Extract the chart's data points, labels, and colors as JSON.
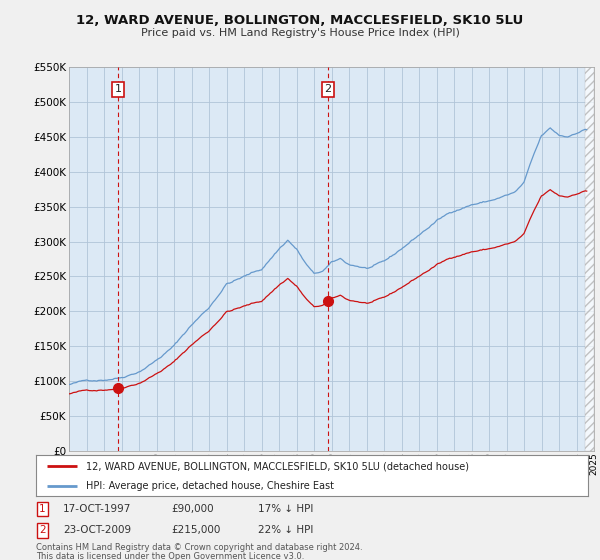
{
  "title": "12, WARD AVENUE, BOLLINGTON, MACCLESFIELD, SK10 5LU",
  "subtitle": "Price paid vs. HM Land Registry's House Price Index (HPI)",
  "ylim": [
    0,
    550000
  ],
  "yticks": [
    0,
    50000,
    100000,
    150000,
    200000,
    250000,
    300000,
    350000,
    400000,
    450000,
    500000,
    550000
  ],
  "ytick_labels": [
    "£0",
    "£50K",
    "£100K",
    "£150K",
    "£200K",
    "£250K",
    "£300K",
    "£350K",
    "£400K",
    "£450K",
    "£500K",
    "£550K"
  ],
  "bg_color": "#f0f0f0",
  "plot_bg_color": "#dce9f5",
  "grid_color": "#b0c4d8",
  "red_color": "#cc1111",
  "blue_color": "#6699cc",
  "marker1_x": 1997.8,
  "marker1_y": 90000,
  "marker2_x": 2009.8,
  "marker2_y": 215000,
  "legend_line1": "12, WARD AVENUE, BOLLINGTON, MACCLESFIELD, SK10 5LU (detached house)",
  "legend_line2": "HPI: Average price, detached house, Cheshire East",
  "footnote_line1": "Contains HM Land Registry data © Crown copyright and database right 2024.",
  "footnote_line2": "This data is licensed under the Open Government Licence v3.0.",
  "xmin": 1995.0,
  "xmax": 2025.0
}
